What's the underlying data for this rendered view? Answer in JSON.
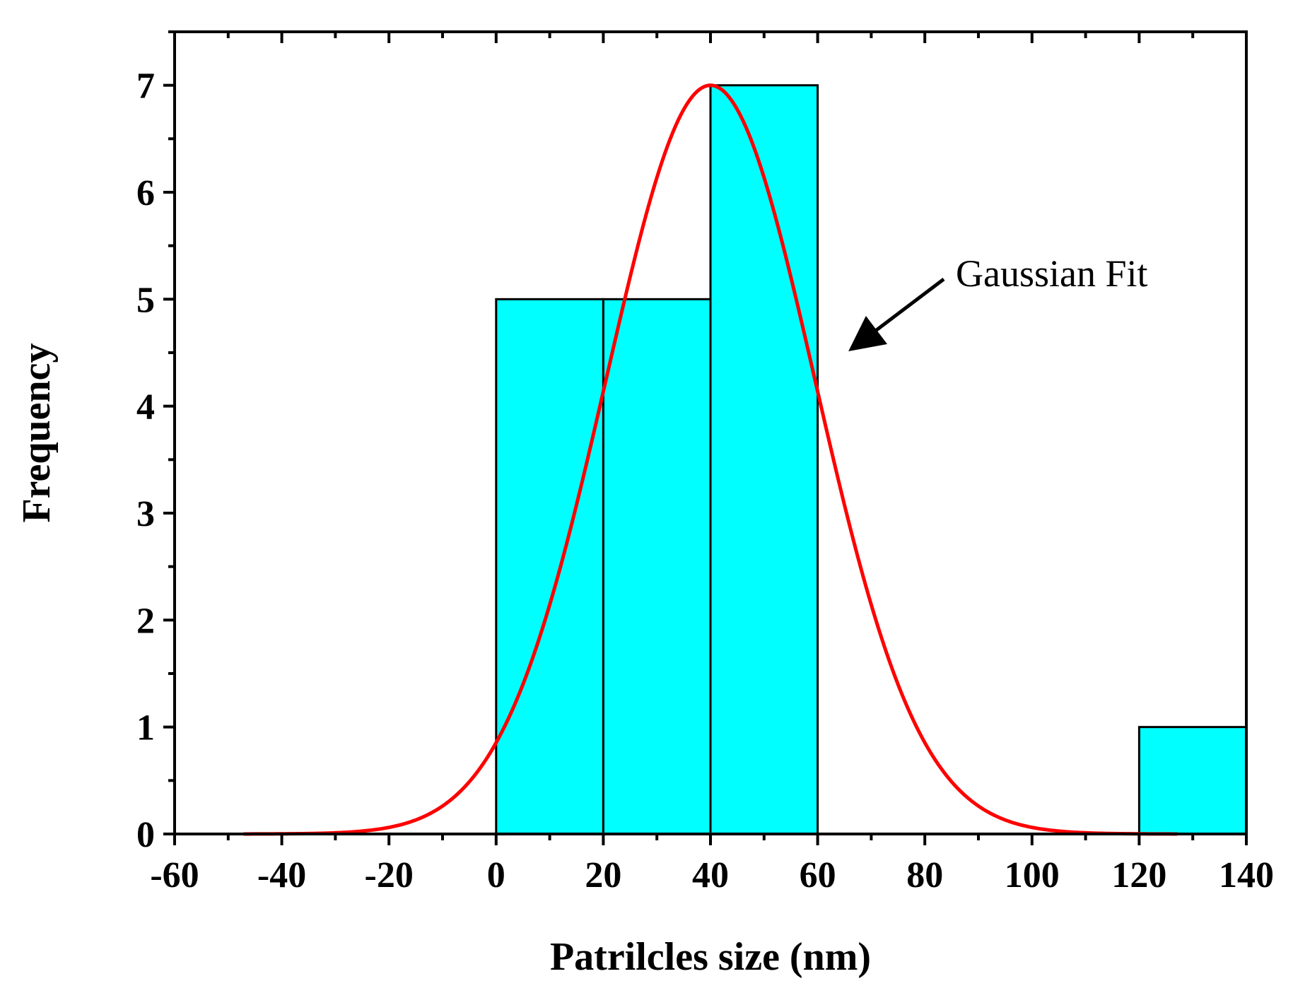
{
  "chart_data": {
    "type": "bar",
    "subtype": "histogram-with-fit",
    "title": "",
    "xlabel": "Patrilcles size (nm)",
    "ylabel": "Frequency",
    "xlim": [
      -60,
      140
    ],
    "ylim": [
      0,
      7.5
    ],
    "x_ticks": [
      -60,
      -40,
      -20,
      0,
      20,
      40,
      60,
      80,
      100,
      120,
      140
    ],
    "y_ticks": [
      0,
      1,
      2,
      3,
      4,
      5,
      6,
      7
    ],
    "bins": [
      {
        "from": 0,
        "to": 20,
        "value": 5
      },
      {
        "from": 20,
        "to": 40,
        "value": 5
      },
      {
        "from": 40,
        "to": 60,
        "value": 7
      },
      {
        "from": 120,
        "to": 140,
        "value": 1
      }
    ],
    "fit": {
      "name": "Gaussian Fit",
      "model": "gaussian",
      "amplitude": 7.0,
      "center": 40,
      "sigma": 19.5,
      "x_range": [
        -47,
        127
      ]
    },
    "annotation": {
      "text": "Gaussian Fit",
      "points_to_x": 66,
      "points_to_y": 4.5
    },
    "colors": {
      "bar_fill": "#00ffff",
      "bar_edge": "#000000",
      "fit_line": "#ff0000"
    }
  }
}
